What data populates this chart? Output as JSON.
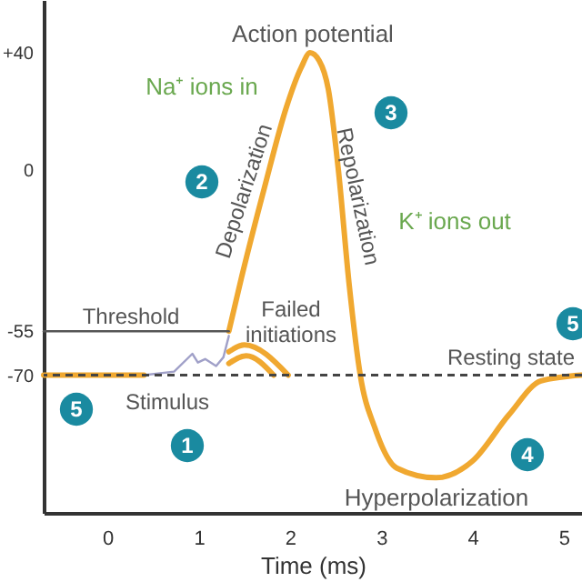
{
  "chart_data": {
    "type": "line",
    "xlabel": "Time (ms)",
    "xlim": [
      -0.7,
      5.2
    ],
    "xticks": [
      0,
      1,
      2,
      3,
      4,
      5
    ],
    "ylim": [
      -117,
      58
    ],
    "yticks": [
      {
        "value": 40,
        "label": "+40"
      },
      0,
      -55,
      -70
    ],
    "grid": false,
    "marker": "none",
    "series": [
      {
        "color": "#f0a830",
        "x": [
          -0.7,
          0.4
        ],
        "values": [
          -70,
          -70
        ]
      },
      {
        "color": "#f0a830",
        "x": [
          1.33,
          1.47,
          1.72,
          1.96,
          2.12,
          2.22,
          2.32,
          2.42,
          2.53,
          2.65,
          2.77,
          2.93,
          3.17,
          3.6,
          4.0,
          4.4,
          4.75,
          5.19
        ],
        "values": [
          -55,
          -36.5,
          -6,
          21.4,
          34.8,
          40,
          37.3,
          27.5,
          0,
          -39.6,
          -70,
          -88,
          -101.7,
          -105,
          -99.3,
          -83.5,
          -72,
          -70
        ]
      },
      {
        "color": "#f0a830",
        "x": [
          1.33,
          1.5,
          1.98
        ],
        "values": [
          -62,
          -59.7,
          -70
        ]
      },
      {
        "color": "#f0a830",
        "x": [
          1.33,
          1.52,
          1.82
        ],
        "values": [
          -66,
          -63.4,
          -70
        ]
      },
      {
        "color": "#a0a0c8",
        "line_style": "solid",
        "x": [
          0.4,
          0.73,
          0.93,
          0.99,
          1.07,
          1.19,
          1.27,
          1.33
        ],
        "values": [
          -70,
          -68.8,
          -62.7,
          -65.7,
          -64.5,
          -66.9,
          -63.9,
          -56.6
        ]
      },
      {
        "color": "#555555",
        "line_style": "solid",
        "x": [
          -0.7,
          1.33
        ],
        "values": [
          -55,
          -55
        ]
      }
    ],
    "ref_lines": [
      {
        "axis": "y",
        "value": -70,
        "label": "Resting state",
        "color": "#444444",
        "line_style": "dashed"
      }
    ],
    "annotations": [
      "Action potential",
      "Na⁺ ions in",
      "Depolarization",
      "Repolarization",
      "K⁺ ions out",
      "Threshold",
      "Failed\ninitiations",
      "Stimulus",
      "Hyperpolarization",
      "1",
      "2",
      "3",
      "4",
      "5",
      "5"
    ]
  }
}
